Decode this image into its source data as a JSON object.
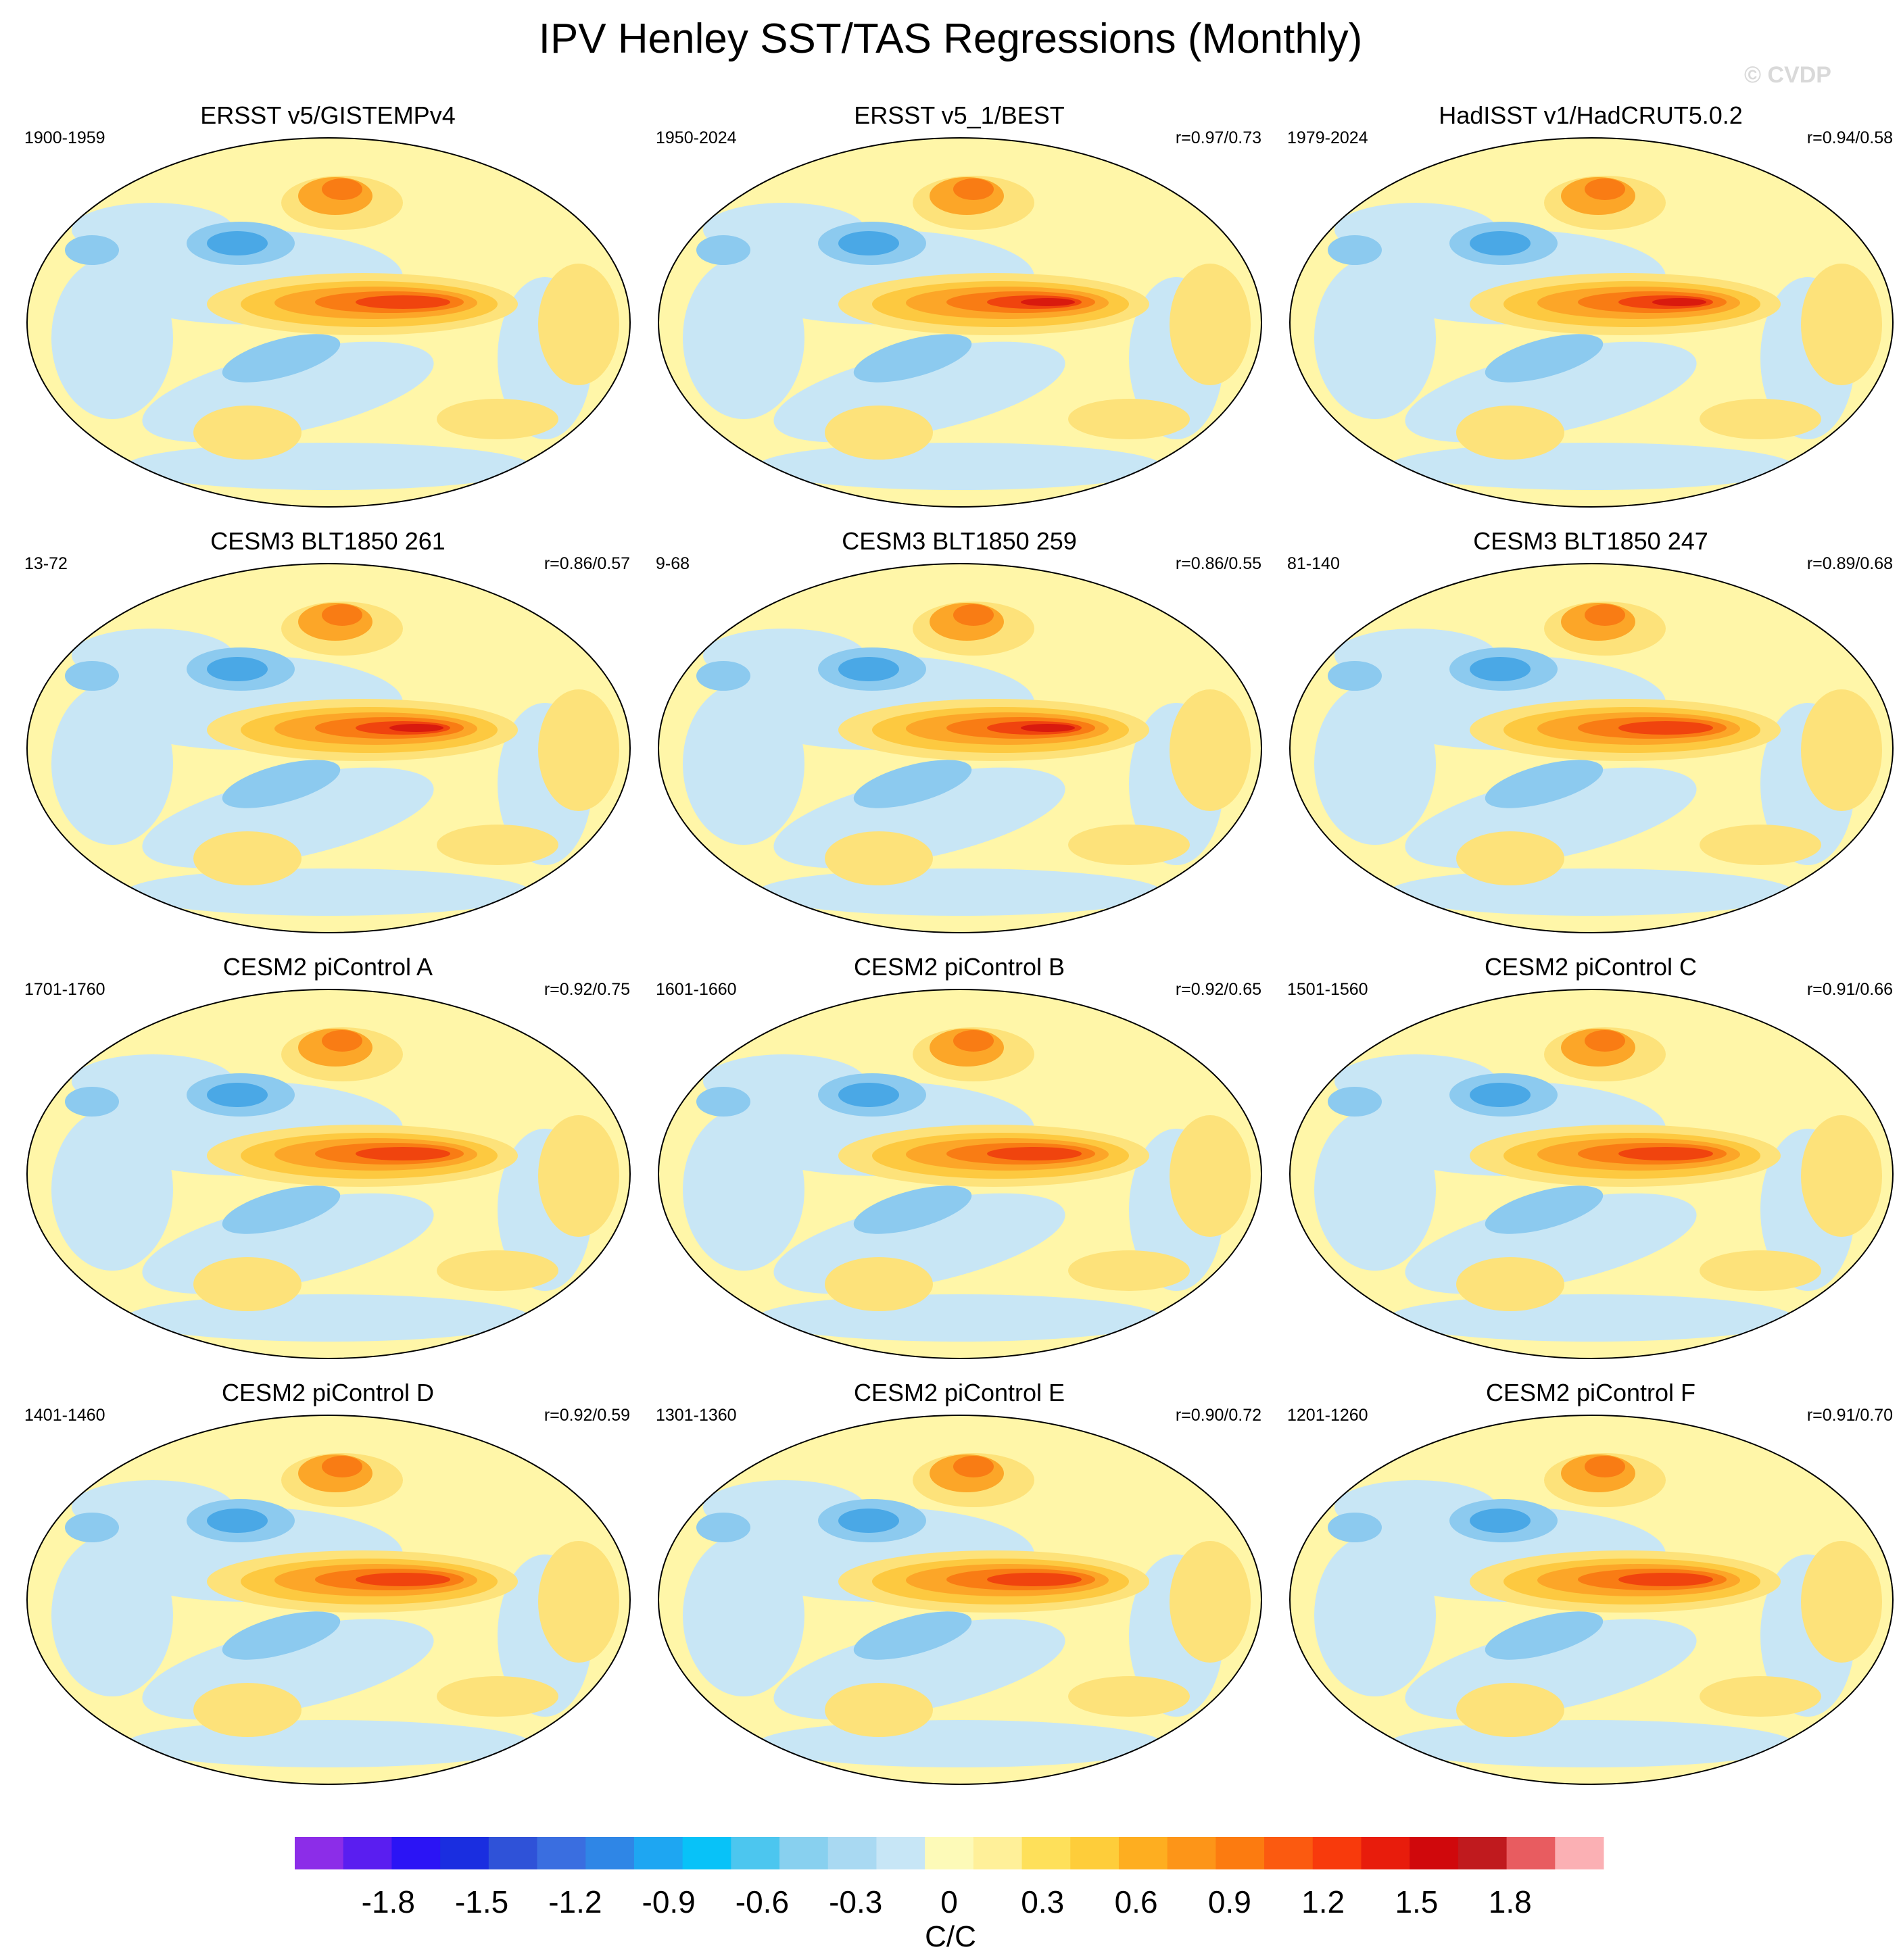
{
  "title": "IPV Henley SST/TAS Regressions (Monthly)",
  "watermark": "© CVDP",
  "panels": [
    {
      "title": "ERSST v5/GISTEMPv4",
      "period": "1900-1959",
      "corr": ""
    },
    {
      "title": "ERSST v5_1/BEST",
      "period": "1950-2024",
      "corr": "r=0.97/0.73"
    },
    {
      "title": "HadISST v1/HadCRUT5.0.2",
      "period": "1979-2024",
      "corr": "r=0.94/0.58"
    },
    {
      "title": "CESM3 BLT1850 261",
      "period": "13-72",
      "corr": "r=0.86/0.57"
    },
    {
      "title": "CESM3 BLT1850 259",
      "period": "9-68",
      "corr": "r=0.86/0.55"
    },
    {
      "title": "CESM3 BLT1850 247",
      "period": "81-140",
      "corr": "r=0.89/0.68"
    },
    {
      "title": "CESM2 piControl A",
      "period": "1701-1760",
      "corr": "r=0.92/0.75"
    },
    {
      "title": "CESM2 piControl B",
      "period": "1601-1660",
      "corr": "r=0.92/0.65"
    },
    {
      "title": "CESM2 piControl C",
      "period": "1501-1560",
      "corr": "r=0.91/0.66"
    },
    {
      "title": "CESM2 piControl D",
      "period": "1401-1460",
      "corr": "r=0.92/0.59"
    },
    {
      "title": "CESM2 piControl E",
      "period": "1301-1360",
      "corr": "r=0.90/0.72"
    },
    {
      "title": "CESM2 piControl F",
      "period": "1201-1260",
      "corr": "r=0.91/0.70"
    }
  ],
  "chart_data": {
    "type": "heatmap",
    "title": "IPV Henley SST/TAS Regressions (Monthly)",
    "projection": "Robinson, Pacific-centered",
    "regression_peak_equatorial_pacific": [
      1.1,
      1.3,
      1.5,
      1.4,
      1.3,
      1.3,
      1.3,
      1.3,
      1.3,
      1.3,
      1.3,
      1.2
    ],
    "colorbar": {
      "label": "C/C",
      "tick_labels": [
        "-1.8",
        "-1.5",
        "-1.2",
        "-0.9",
        "-0.6",
        "-0.3",
        "0",
        "0.3",
        "0.6",
        "0.9",
        "1.2",
        "1.5",
        "1.8"
      ],
      "tick_values": [
        -1.8,
        -1.5,
        -1.2,
        -0.9,
        -0.6,
        -0.3,
        0,
        0.3,
        0.6,
        0.9,
        1.2,
        1.5,
        1.8
      ],
      "levels": [
        -2.1,
        -1.95,
        -1.8,
        -1.65,
        -1.5,
        -1.35,
        -1.2,
        -1.05,
        -0.9,
        -0.75,
        -0.6,
        -0.45,
        -0.3,
        -0.15,
        0,
        0.15,
        0.3,
        0.45,
        0.6,
        0.75,
        0.9,
        1.05,
        1.2,
        1.35,
        1.5,
        1.65,
        1.8,
        1.95,
        2.1
      ],
      "colors": [
        "#8c2de8",
        "#5a1ef0",
        "#2b14f5",
        "#1a2ee0",
        "#2f52d8",
        "#3a6ee0",
        "#2f86e6",
        "#1ea6f2",
        "#08c2f8",
        "#4cc6ef",
        "#88d0ef",
        "#a9d9f2",
        "#c7e6f6",
        "#fdfab8",
        "#fff099",
        "#fee05a",
        "#fecd3a",
        "#feae20",
        "#fd9518",
        "#fc7b10",
        "#fb5a10",
        "#f83a0c",
        "#e81c0c",
        "#d0080c",
        "#c01a1e",
        "#e85c60",
        "#fbb0b4"
      ]
    }
  }
}
